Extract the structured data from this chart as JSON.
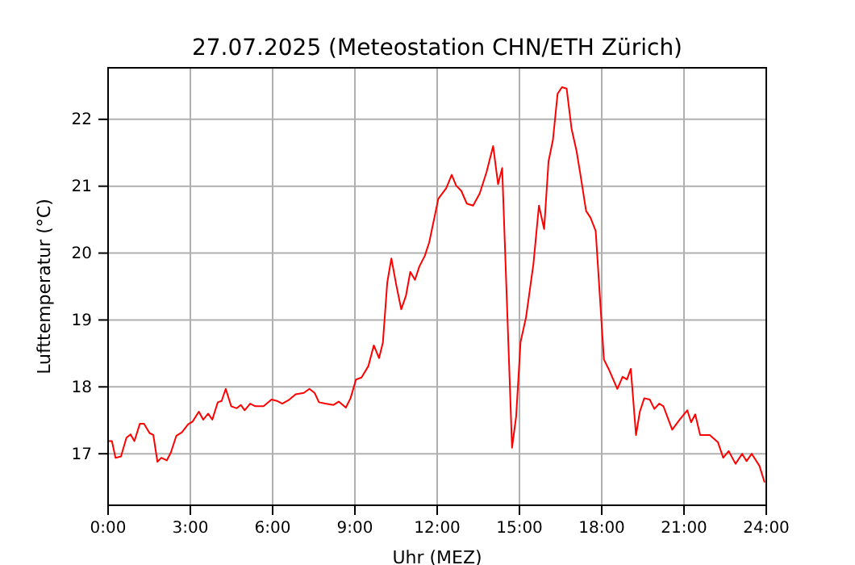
{
  "chart_data": {
    "type": "line",
    "title": "27.07.2025  (Meteostation CHN/ETH Zürich)",
    "xlabel": "Uhr (MEZ)",
    "ylabel": "Lufttemperatur (°C)",
    "x": [
      0,
      0.14,
      0.27,
      0.47,
      0.67,
      0.82,
      0.96,
      1.16,
      1.31,
      1.51,
      1.65,
      1.8,
      1.94,
      2.14,
      2.29,
      2.49,
      2.69,
      2.92,
      3.08,
      3.31,
      3.47,
      3.65,
      3.8,
      4.0,
      4.14,
      4.29,
      4.49,
      4.69,
      4.84,
      4.98,
      5.18,
      5.37,
      5.67,
      5.96,
      6.16,
      6.35,
      6.61,
      6.84,
      7.14,
      7.34,
      7.53,
      7.69,
      7.92,
      8.22,
      8.41,
      8.67,
      8.84,
      9.04,
      9.24,
      9.49,
      9.69,
      9.88,
      10.02,
      10.18,
      10.33,
      10.51,
      10.69,
      10.86,
      11.02,
      11.19,
      11.35,
      11.55,
      11.71,
      12.04,
      12.33,
      12.53,
      12.69,
      12.88,
      13.08,
      13.31,
      13.55,
      13.8,
      14.04,
      14.22,
      14.37,
      14.73,
      14.88,
      15.04,
      15.24,
      15.51,
      15.71,
      15.9,
      16.06,
      16.22,
      16.39,
      16.55,
      16.72,
      16.9,
      17.08,
      17.24,
      17.43,
      17.59,
      17.78,
      18.08,
      18.25,
      18.57,
      18.76,
      18.92,
      19.06,
      19.25,
      19.39,
      19.55,
      19.75,
      19.92,
      20.1,
      20.25,
      20.57,
      20.86,
      21.12,
      21.26,
      21.41,
      21.59,
      21.94,
      22.24,
      22.43,
      22.63,
      22.88,
      23.12,
      23.28,
      23.47,
      23.75,
      23.94
    ],
    "series": [
      {
        "color": "#ff0000",
        "values": [
          17.19,
          17.19,
          16.94,
          16.96,
          17.24,
          17.29,
          17.19,
          17.45,
          17.45,
          17.31,
          17.28,
          16.88,
          16.94,
          16.9,
          17.02,
          17.27,
          17.32,
          17.44,
          17.48,
          17.63,
          17.51,
          17.6,
          17.51,
          17.77,
          17.79,
          17.97,
          17.71,
          17.68,
          17.73,
          17.65,
          17.75,
          17.71,
          17.71,
          17.81,
          17.79,
          17.75,
          17.81,
          17.89,
          17.91,
          17.97,
          17.91,
          17.77,
          17.75,
          17.73,
          17.78,
          17.69,
          17.83,
          18.11,
          18.14,
          18.31,
          18.62,
          18.43,
          18.66,
          19.56,
          19.92,
          19.52,
          19.16,
          19.36,
          19.72,
          19.6,
          19.8,
          19.96,
          20.16,
          20.81,
          20.97,
          21.17,
          21.01,
          20.93,
          20.74,
          20.71,
          20.89,
          21.21,
          21.6,
          21.03,
          21.27,
          17.09,
          17.56,
          18.67,
          19.04,
          19.84,
          20.71,
          20.36,
          21.37,
          21.69,
          22.38,
          22.48,
          22.46,
          21.86,
          21.53,
          21.13,
          20.63,
          20.53,
          20.33,
          18.41,
          18.27,
          17.97,
          18.15,
          18.11,
          18.27,
          17.28,
          17.63,
          17.83,
          17.81,
          17.67,
          17.75,
          17.71,
          17.36,
          17.52,
          17.65,
          17.47,
          17.59,
          17.28,
          17.28,
          17.17,
          16.94,
          17.04,
          16.85,
          17.0,
          16.89,
          17.0,
          16.82,
          16.57
        ]
      }
    ],
    "xlim": [
      0,
      24
    ],
    "xticks": [
      {
        "value": 0,
        "label": "0:00"
      },
      {
        "value": 3,
        "label": "3:00"
      },
      {
        "value": 6,
        "label": "6:00"
      },
      {
        "value": 9,
        "label": "9:00"
      },
      {
        "value": 12,
        "label": "12:00"
      },
      {
        "value": 15,
        "label": "15:00"
      },
      {
        "value": 18,
        "label": "18:00"
      },
      {
        "value": 21,
        "label": "21:00"
      },
      {
        "value": 24,
        "label": "24:00"
      }
    ],
    "ylim": [
      16.23,
      22.77
    ],
    "yticks": [
      17,
      18,
      19,
      20,
      21,
      22
    ],
    "grid": true
  }
}
